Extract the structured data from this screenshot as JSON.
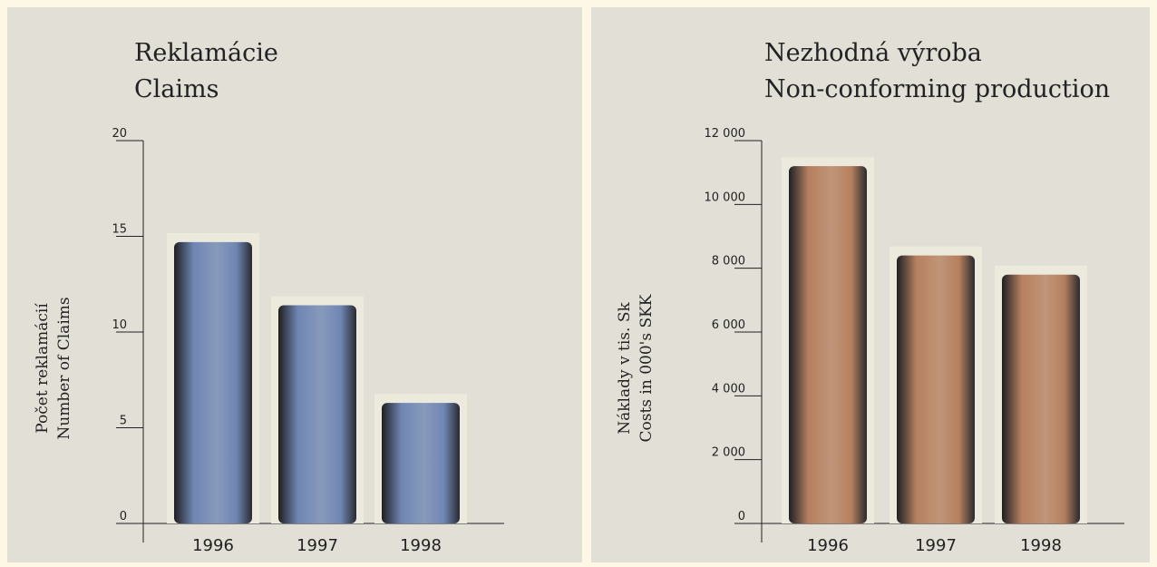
{
  "chart_data": [
    {
      "type": "bar",
      "title": [
        "Reklamácie",
        "Claims"
      ],
      "y_label": [
        "Počet reklamácií",
        "Number of Claims"
      ],
      "categories": [
        "1996",
        "1997",
        "1998"
      ],
      "values": [
        14.7,
        11.4,
        6.3
      ],
      "color": "#6f86b3",
      "ylim": [
        0,
        20
      ],
      "yticks": [
        0,
        5,
        10,
        15,
        20
      ]
    },
    {
      "type": "bar",
      "title": [
        "Nezhodná výroba",
        "Non-conforming production"
      ],
      "y_label": [
        "Náklady v tis. Sk",
        "Costs in 000's SKK"
      ],
      "categories": [
        "1996",
        "1997",
        "1998"
      ],
      "values": [
        11200,
        8400,
        7800
      ],
      "color": "#b5805f",
      "ylim": [
        0,
        12000
      ],
      "yticks": [
        0,
        {
          "value": 2000,
          "label": "2 000"
        },
        {
          "value": 4000,
          "label": "4 000"
        },
        {
          "value": 6000,
          "label": "6 000"
        },
        {
          "value": 8000,
          "label": "8 000"
        },
        {
          "value": 10000,
          "label": "10 000"
        },
        {
          "value": 12000,
          "label": "12 000"
        }
      ]
    }
  ]
}
